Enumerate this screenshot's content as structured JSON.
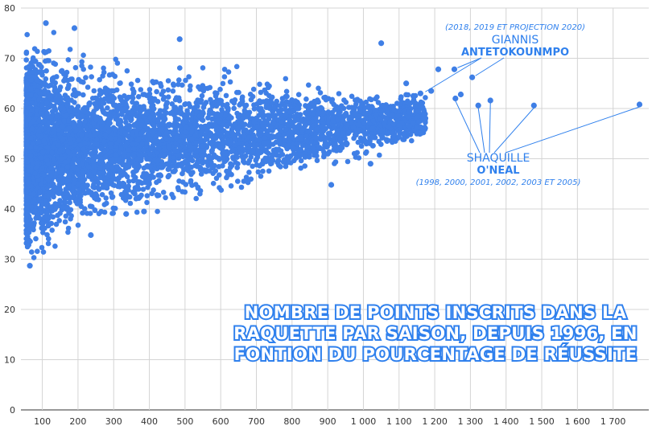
{
  "chart_data": {
    "type": "scatter",
    "title_lines": [
      "NOMBRE DE POINTS INSCRITS DANS LA",
      "RAQUETTE PAR SAISON, DEPUIS 1996, EN",
      "FONTION DU POURCENTAGE DE RÉUSSITE"
    ],
    "xlabel": "",
    "ylabel": "",
    "xlim": [
      40,
      1800
    ],
    "ylim": [
      0,
      80
    ],
    "x_ticks": [
      100,
      200,
      300,
      400,
      500,
      600,
      700,
      800,
      900,
      1000,
      1100,
      1200,
      1300,
      1400,
      1500,
      1600,
      1700
    ],
    "x_tick_labels": [
      "100",
      "200",
      "300",
      "400",
      "500",
      "600",
      "700",
      "800",
      "900",
      "1 000",
      "1 100",
      "1 200",
      "1 300",
      "1 400",
      "1 500",
      "1 600",
      "1 700"
    ],
    "y_ticks": [
      0,
      10,
      20,
      30,
      40,
      50,
      60,
      70,
      80
    ],
    "grid": true,
    "marker_color": "#3f7fe6",
    "cloud_description_range": {
      "x": [
        55,
        1190
      ],
      "y": [
        28.5,
        77
      ]
    },
    "points": [
      {
        "x": 1255,
        "y": 67.8,
        "series": "giannis"
      },
      {
        "x": 1273,
        "y": 62.8,
        "series": "giannis"
      },
      {
        "x": 1305,
        "y": 66.2,
        "series": "giannis"
      },
      {
        "x": 1258,
        "y": 62.0,
        "series": "shaq"
      },
      {
        "x": 1322,
        "y": 60.6,
        "series": "shaq"
      },
      {
        "x": 1356,
        "y": 61.6,
        "series": "shaq"
      },
      {
        "x": 1478,
        "y": 60.6,
        "series": "shaq"
      },
      {
        "x": 1774,
        "y": 60.8,
        "series": "shaq"
      },
      {
        "x": 1160,
        "y": 63.0,
        "series": "shaq"
      },
      {
        "x": 1190,
        "y": 63.5,
        "series": "other"
      },
      {
        "x": 1210,
        "y": 67.8,
        "series": "other"
      },
      {
        "x": 1120,
        "y": 65.0,
        "series": "other"
      },
      {
        "x": 1130,
        "y": 61.0,
        "series": "other"
      },
      {
        "x": 1140,
        "y": 62.5,
        "series": "other"
      },
      {
        "x": 1050,
        "y": 73.0,
        "series": "other"
      },
      {
        "x": 1020,
        "y": 49.0,
        "series": "other"
      },
      {
        "x": 910,
        "y": 44.8,
        "series": "other"
      },
      {
        "x": 65,
        "y": 28.7,
        "series": "other"
      },
      {
        "x": 236,
        "y": 34.8,
        "series": "other"
      },
      {
        "x": 110,
        "y": 77.0,
        "series": "other"
      },
      {
        "x": 190,
        "y": 76.0,
        "series": "other"
      },
      {
        "x": 485,
        "y": 73.8,
        "series": "other"
      },
      {
        "x": 335,
        "y": 39.0,
        "series": "other"
      },
      {
        "x": 385,
        "y": 39.5,
        "series": "other"
      }
    ],
    "annotations": [
      {
        "id": "giannis",
        "subtitle": "(2018, 2019 ET PROJECTION 2020)",
        "name_line1": "GIANNIS",
        "name_line2": "ANTETOKOUNMPO"
      },
      {
        "id": "shaq",
        "name_line1": "SHAQUILLE",
        "name_line2": "O'NEAL",
        "subtitle": "(1998, 2000, 2001, 2002, 2003 ET 2005)"
      }
    ]
  }
}
